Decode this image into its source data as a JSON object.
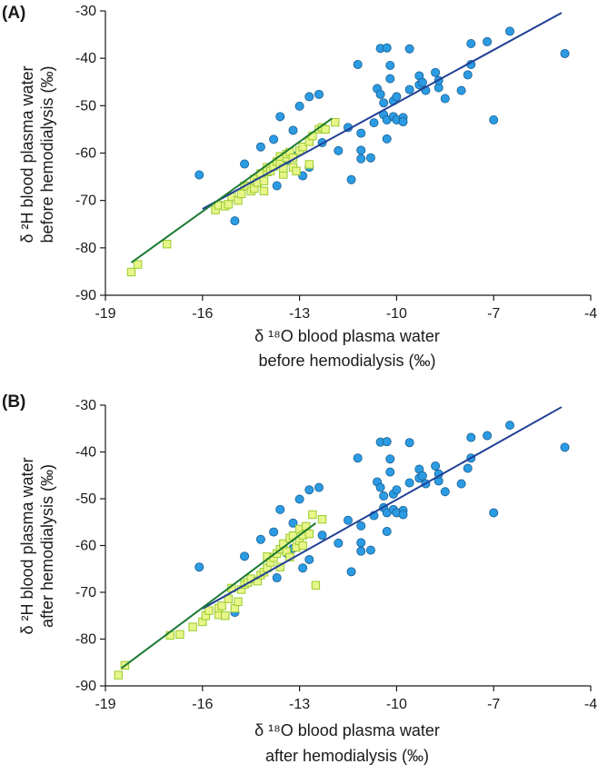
{
  "colors": {
    "circle_fill": "#2b9be3",
    "circle_stroke": "#1b5f91",
    "square_fill": "#e7f58a",
    "square_stroke": "#9acb2c",
    "circle_line": "#1f3f94",
    "square_line": "#1c7a33",
    "axis": "#1a1a1a"
  },
  "chart_data": [
    {
      "type": "scatter",
      "panel_label": "(A)",
      "ylabel_lines": [
        "δ ²H blood plasma water",
        "before hemodialysis (‰)"
      ],
      "xlabel_lines": [
        "δ ¹⁸O blood plasma water",
        "before hemodialysis (‰)"
      ],
      "xlim": [
        -19,
        -4
      ],
      "ylim": [
        -90,
        -30
      ],
      "x_ticks": [
        -19,
        -16,
        -13,
        -10,
        -7,
        -4
      ],
      "y_ticks": [
        -30,
        -40,
        -50,
        -60,
        -70,
        -80,
        -90
      ],
      "x_tick_labels": [
        "-19",
        "-16",
        "-13",
        "-10",
        "-7",
        "-4"
      ],
      "y_tick_labels": [
        "-30",
        "-40",
        "-50",
        "-60",
        "-70",
        "-80",
        "-90"
      ],
      "series": [
        {
          "marker": "circle",
          "points": [
            [
              -16.1,
              -64.6
            ],
            [
              -15.0,
              -74.3
            ],
            [
              -14.7,
              -62.3
            ],
            [
              -14.2,
              -58.7
            ],
            [
              -13.8,
              -57.1
            ],
            [
              -13.7,
              -66.9
            ],
            [
              -13.6,
              -52.3
            ],
            [
              -13.4,
              -61.6
            ],
            [
              -13.2,
              -60.6
            ],
            [
              -13.2,
              -55.2
            ],
            [
              -13.0,
              -50.1
            ],
            [
              -12.9,
              -64.8
            ],
            [
              -12.7,
              -48.1
            ],
            [
              -12.4,
              -47.6
            ],
            [
              -12.3,
              -57.8
            ],
            [
              -12.7,
              -63.0
            ],
            [
              -11.8,
              -59.5
            ],
            [
              -11.5,
              -54.6
            ],
            [
              -11.4,
              -65.6
            ],
            [
              -11.2,
              -41.3
            ],
            [
              -11.1,
              -59.4
            ],
            [
              -11.1,
              -61.2
            ],
            [
              -11.1,
              -55.8
            ],
            [
              -10.8,
              -61.0
            ],
            [
              -10.7,
              -53.6
            ],
            [
              -10.6,
              -46.4
            ],
            [
              -10.5,
              -37.9
            ],
            [
              -10.5,
              -47.6
            ],
            [
              -10.4,
              -51.9
            ],
            [
              -10.4,
              -49.4
            ],
            [
              -10.3,
              -53.0
            ],
            [
              -10.3,
              -57.0
            ],
            [
              -10.3,
              -37.8
            ],
            [
              -10.1,
              -49.0
            ],
            [
              -10.1,
              -52.3
            ],
            [
              -10.0,
              -48.1
            ],
            [
              -10.0,
              -53.0
            ],
            [
              -10.2,
              -44.3
            ],
            [
              -10.2,
              -41.5
            ],
            [
              -9.8,
              -52.5
            ],
            [
              -9.8,
              -53.4
            ],
            [
              -9.6,
              -38.0
            ],
            [
              -9.6,
              -46.6
            ],
            [
              -9.3,
              -43.7
            ],
            [
              -9.3,
              -45.6
            ],
            [
              -9.2,
              -45.1
            ],
            [
              -9.1,
              -46.8
            ],
            [
              -8.8,
              -43.0
            ],
            [
              -8.7,
              -46.2
            ],
            [
              -8.7,
              -44.7
            ],
            [
              -8.5,
              -48.5
            ],
            [
              -8.0,
              -46.8
            ],
            [
              -7.8,
              -43.5
            ],
            [
              -7.7,
              -41.3
            ],
            [
              -7.7,
              -36.9
            ],
            [
              -7.2,
              -36.5
            ],
            [
              -7.0,
              -53.0
            ],
            [
              -6.5,
              -34.3
            ],
            [
              -4.8,
              -39.0
            ]
          ],
          "fit": [
            [
              -16.0,
              -71.8
            ],
            [
              -4.9,
              -30.4
            ]
          ]
        },
        {
          "marker": "square",
          "points": [
            [
              -18.2,
              -85.1
            ],
            [
              -18.0,
              -83.5
            ],
            [
              -17.1,
              -79.2
            ],
            [
              -15.6,
              -72.0
            ],
            [
              -15.5,
              -71.0
            ],
            [
              -15.3,
              -71.2
            ],
            [
              -15.2,
              -70.8
            ],
            [
              -15.1,
              -69.2
            ],
            [
              -14.9,
              -70.0
            ],
            [
              -14.8,
              -68.6
            ],
            [
              -14.7,
              -66.9
            ],
            [
              -14.6,
              -67.0
            ],
            [
              -14.5,
              -68.0
            ],
            [
              -14.4,
              -67.5
            ],
            [
              -14.4,
              -65.5
            ],
            [
              -14.3,
              -66.2
            ],
            [
              -14.2,
              -64.3
            ],
            [
              -14.1,
              -65.9
            ],
            [
              -14.1,
              -68.0
            ],
            [
              -14.0,
              -64.0
            ],
            [
              -14.0,
              -63.0
            ],
            [
              -13.9,
              -63.8
            ],
            [
              -13.8,
              -62.8
            ],
            [
              -13.7,
              -61.8
            ],
            [
              -13.6,
              -62.3
            ],
            [
              -13.6,
              -60.7
            ],
            [
              -13.5,
              -64.5
            ],
            [
              -13.5,
              -63.2
            ],
            [
              -13.4,
              -61.0
            ],
            [
              -13.4,
              -60.2
            ],
            [
              -13.3,
              -59.8
            ],
            [
              -13.2,
              -61.0
            ],
            [
              -13.2,
              -63.0
            ],
            [
              -13.1,
              -63.8
            ],
            [
              -13.0,
              -59.5
            ],
            [
              -12.9,
              -58.7
            ],
            [
              -12.7,
              -57.6
            ],
            [
              -12.7,
              -62.4
            ],
            [
              -12.6,
              -56.4
            ],
            [
              -12.4,
              -55.0
            ],
            [
              -12.3,
              -54.6
            ],
            [
              -12.2,
              -55.0
            ],
            [
              -11.9,
              -53.5
            ]
          ],
          "fit": [
            [
              -18.2,
              -83.1
            ],
            [
              -12.0,
              -52.7
            ]
          ]
        }
      ]
    },
    {
      "type": "scatter",
      "panel_label": "(B)",
      "ylabel_lines": [
        "δ ²H blood plasma water",
        "after hemodialysis (‰)"
      ],
      "xlabel_lines": [
        "δ ¹⁸O blood plasma water",
        "after hemodialysis (‰)"
      ],
      "xlim": [
        -19,
        -4
      ],
      "ylim": [
        -90,
        -30
      ],
      "x_ticks": [
        -19,
        -16,
        -13,
        -10,
        -7,
        -4
      ],
      "y_ticks": [
        -30,
        -40,
        -50,
        -60,
        -70,
        -80,
        -90
      ],
      "x_tick_labels": [
        "-19",
        "-16",
        "-13",
        "-10",
        "-7",
        "-4"
      ],
      "y_tick_labels": [
        "-30",
        "-40",
        "-50",
        "-60",
        "-70",
        "-80",
        "-90"
      ],
      "series": [
        {
          "marker": "circle",
          "points": [
            [
              -16.1,
              -64.6
            ],
            [
              -15.0,
              -74.3
            ],
            [
              -14.7,
              -62.3
            ],
            [
              -14.2,
              -58.7
            ],
            [
              -13.8,
              -57.1
            ],
            [
              -13.7,
              -66.9
            ],
            [
              -13.6,
              -52.3
            ],
            [
              -13.4,
              -61.6
            ],
            [
              -13.2,
              -60.6
            ],
            [
              -13.2,
              -55.2
            ],
            [
              -13.0,
              -50.1
            ],
            [
              -12.9,
              -64.8
            ],
            [
              -12.7,
              -48.1
            ],
            [
              -12.4,
              -47.6
            ],
            [
              -12.3,
              -57.8
            ],
            [
              -12.7,
              -63.0
            ],
            [
              -11.8,
              -59.5
            ],
            [
              -11.5,
              -54.6
            ],
            [
              -11.4,
              -65.6
            ],
            [
              -11.2,
              -41.3
            ],
            [
              -11.1,
              -59.4
            ],
            [
              -11.1,
              -61.2
            ],
            [
              -11.1,
              -55.8
            ],
            [
              -10.8,
              -61.0
            ],
            [
              -10.7,
              -53.6
            ],
            [
              -10.6,
              -46.4
            ],
            [
              -10.5,
              -37.9
            ],
            [
              -10.5,
              -47.6
            ],
            [
              -10.4,
              -51.9
            ],
            [
              -10.4,
              -49.4
            ],
            [
              -10.3,
              -53.0
            ],
            [
              -10.3,
              -57.0
            ],
            [
              -10.3,
              -37.8
            ],
            [
              -10.1,
              -49.0
            ],
            [
              -10.1,
              -52.3
            ],
            [
              -10.0,
              -48.1
            ],
            [
              -10.0,
              -53.0
            ],
            [
              -10.2,
              -44.3
            ],
            [
              -10.2,
              -41.5
            ],
            [
              -9.8,
              -52.5
            ],
            [
              -9.8,
              -53.4
            ],
            [
              -9.6,
              -38.0
            ],
            [
              -9.6,
              -46.6
            ],
            [
              -9.3,
              -43.7
            ],
            [
              -9.3,
              -45.6
            ],
            [
              -9.2,
              -45.1
            ],
            [
              -9.1,
              -46.8
            ],
            [
              -8.8,
              -43.0
            ],
            [
              -8.7,
              -46.2
            ],
            [
              -8.7,
              -44.7
            ],
            [
              -8.5,
              -48.5
            ],
            [
              -8.0,
              -46.8
            ],
            [
              -7.8,
              -43.5
            ],
            [
              -7.7,
              -41.3
            ],
            [
              -7.7,
              -36.9
            ],
            [
              -7.2,
              -36.5
            ],
            [
              -7.0,
              -53.0
            ],
            [
              -6.5,
              -34.3
            ],
            [
              -4.8,
              -39.0
            ]
          ],
          "fit": [
            [
              -16.0,
              -73.5
            ],
            [
              -4.9,
              -30.4
            ]
          ]
        },
        {
          "marker": "square",
          "points": [
            [
              -18.6,
              -87.7
            ],
            [
              -18.4,
              -85.6
            ],
            [
              -17.0,
              -79.2
            ],
            [
              -16.7,
              -79.0
            ],
            [
              -16.3,
              -77.4
            ],
            [
              -16.0,
              -76.3
            ],
            [
              -15.9,
              -75.0
            ],
            [
              -15.8,
              -73.9
            ],
            [
              -15.5,
              -74.8
            ],
            [
              -15.5,
              -73.4
            ],
            [
              -15.4,
              -72.9
            ],
            [
              -15.3,
              -75.0
            ],
            [
              -15.2,
              -71.4
            ],
            [
              -15.1,
              -69.1
            ],
            [
              -15.0,
              -73.4
            ],
            [
              -14.9,
              -72.0
            ],
            [
              -14.8,
              -69.4
            ],
            [
              -14.7,
              -68.3
            ],
            [
              -14.6,
              -67.9
            ],
            [
              -14.5,
              -67.1
            ],
            [
              -14.3,
              -67.6
            ],
            [
              -14.2,
              -66.3
            ],
            [
              -14.1,
              -65.7
            ],
            [
              -14.0,
              -64.8
            ],
            [
              -14.0,
              -62.4
            ],
            [
              -13.9,
              -63.6
            ],
            [
              -13.8,
              -62.6
            ],
            [
              -13.7,
              -61.7
            ],
            [
              -13.6,
              -60.8
            ],
            [
              -13.6,
              -64.6
            ],
            [
              -13.5,
              -59.6
            ],
            [
              -13.4,
              -61.3
            ],
            [
              -13.3,
              -58.4
            ],
            [
              -13.3,
              -62.5
            ],
            [
              -13.2,
              -57.9
            ],
            [
              -13.1,
              -60.4
            ],
            [
              -13.0,
              -59.0
            ],
            [
              -13.0,
              -56.5
            ],
            [
              -12.9,
              -57.8
            ],
            [
              -12.8,
              -55.9
            ],
            [
              -12.7,
              -57.5
            ],
            [
              -12.6,
              -53.4
            ],
            [
              -12.5,
              -68.5
            ],
            [
              -12.3,
              -54.4
            ],
            [
              -12.9,
              -60.0
            ]
          ],
          "fit": [
            [
              -18.5,
              -86.2
            ],
            [
              -12.5,
              -55.2
            ]
          ]
        }
      ]
    }
  ]
}
